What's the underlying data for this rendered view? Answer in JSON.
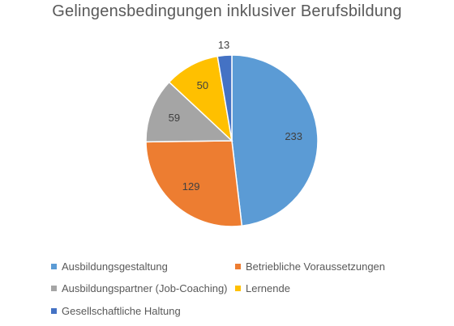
{
  "chart_data": {
    "type": "pie",
    "title": "Gelingensbedingungen inklusiver Berufsbildung",
    "categories": [
      "Ausbildungsgestaltung",
      "Betriebliche Voraussetzungen",
      "Ausbildungspartner (Job-Coaching)",
      "Lernende",
      "Gesellschaftliche Haltung"
    ],
    "values": [
      233,
      129,
      59,
      50,
      13
    ],
    "colors": [
      "#5B9BD5",
      "#ED7D31",
      "#A5A5A5",
      "#FFC000",
      "#4472C4"
    ],
    "legend_position": "bottom",
    "data_labels": [
      "233",
      "129",
      "59",
      "50",
      "13"
    ]
  }
}
